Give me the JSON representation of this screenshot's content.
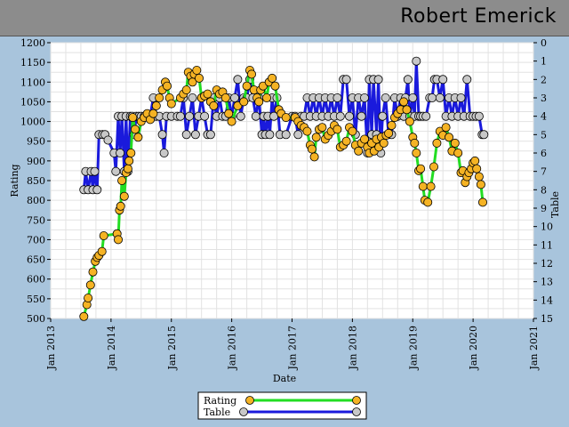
{
  "header": {
    "title": "Robert Emerick"
  },
  "chart_data": {
    "type": "line",
    "xlabel": "Date",
    "ylabel": "Rating",
    "y2label": "Table",
    "ylim": [
      500,
      1200
    ],
    "yticks": [
      500,
      550,
      600,
      650,
      700,
      750,
      800,
      850,
      900,
      950,
      1000,
      1050,
      1100,
      1150,
      1200
    ],
    "y2lim": [
      15,
      0
    ],
    "y2ticks": [
      0,
      1,
      2,
      3,
      4,
      5,
      6,
      7,
      8,
      9,
      10,
      11,
      12,
      13,
      14,
      15
    ],
    "xlim": [
      2013,
      2021
    ],
    "xticks": [
      {
        "value": 2013,
        "label": "Jan 2013"
      },
      {
        "value": 2014,
        "label": "Jan 2014"
      },
      {
        "value": 2015,
        "label": "Jan 2015"
      },
      {
        "value": 2016,
        "label": "Jan 2016"
      },
      {
        "value": 2017,
        "label": "Jan 2017"
      },
      {
        "value": 2018,
        "label": "Jan 2018"
      },
      {
        "value": 2019,
        "label": "Jan 2019"
      },
      {
        "value": 2020,
        "label": "Jan 2020"
      },
      {
        "value": 2021,
        "label": "Jan 2021"
      }
    ],
    "grid": true,
    "legend_position": "bottom-center",
    "series": [
      {
        "name": "Rating",
        "axis": "left",
        "line_color": "#22dd22",
        "marker_color": "#f5b324",
        "points": [
          [
            2013.55,
            505
          ],
          [
            2013.6,
            535
          ],
          [
            2013.62,
            552
          ],
          [
            2013.66,
            585
          ],
          [
            2013.7,
            618
          ],
          [
            2013.74,
            645
          ],
          [
            2013.77,
            655
          ],
          [
            2013.8,
            660
          ],
          [
            2013.85,
            670
          ],
          [
            2013.88,
            710
          ],
          [
            2014.1,
            715
          ],
          [
            2014.12,
            700
          ],
          [
            2014.14,
            775
          ],
          [
            2014.16,
            785
          ],
          [
            2014.18,
            850
          ],
          [
            2014.22,
            810
          ],
          [
            2014.25,
            870
          ],
          [
            2014.28,
            880
          ],
          [
            2014.3,
            900
          ],
          [
            2014.33,
            920
          ],
          [
            2014.36,
            1010
          ],
          [
            2014.4,
            980
          ],
          [
            2014.45,
            960
          ],
          [
            2014.5,
            1000
          ],
          [
            2014.55,
            1010
          ],
          [
            2014.6,
            1020
          ],
          [
            2014.65,
            1005
          ],
          [
            2014.7,
            1020
          ],
          [
            2014.75,
            1040
          ],
          [
            2014.8,
            1060
          ],
          [
            2014.85,
            1080
          ],
          [
            2014.9,
            1100
          ],
          [
            2014.93,
            1090
          ],
          [
            2014.97,
            1060
          ],
          [
            2015.0,
            1045
          ],
          [
            2015.15,
            1060
          ],
          [
            2015.2,
            1070
          ],
          [
            2015.25,
            1080
          ],
          [
            2015.28,
            1125
          ],
          [
            2015.32,
            1115
          ],
          [
            2015.35,
            1100
          ],
          [
            2015.38,
            1120
          ],
          [
            2015.42,
            1130
          ],
          [
            2015.46,
            1110
          ],
          [
            2015.5,
            1060
          ],
          [
            2015.55,
            1065
          ],
          [
            2015.6,
            1070
          ],
          [
            2015.65,
            1050
          ],
          [
            2015.7,
            1040
          ],
          [
            2015.75,
            1080
          ],
          [
            2015.8,
            1070
          ],
          [
            2015.85,
            1075
          ],
          [
            2015.9,
            1060
          ],
          [
            2015.95,
            1020
          ],
          [
            2016.0,
            1000
          ],
          [
            2016.1,
            1040
          ],
          [
            2016.2,
            1050
          ],
          [
            2016.25,
            1090
          ],
          [
            2016.3,
            1130
          ],
          [
            2016.33,
            1120
          ],
          [
            2016.37,
            1080
          ],
          [
            2016.42,
            1060
          ],
          [
            2016.45,
            1050
          ],
          [
            2016.48,
            1080
          ],
          [
            2016.52,
            1090
          ],
          [
            2016.58,
            1060
          ],
          [
            2016.62,
            1100
          ],
          [
            2016.67,
            1110
          ],
          [
            2016.72,
            1090
          ],
          [
            2016.78,
            1030
          ],
          [
            2016.82,
            1020
          ],
          [
            2016.9,
            1010
          ],
          [
            2017.05,
            1010
          ],
          [
            2017.1,
            1000
          ],
          [
            2017.15,
            990
          ],
          [
            2017.2,
            985
          ],
          [
            2017.25,
            975
          ],
          [
            2017.3,
            940
          ],
          [
            2017.33,
            930
          ],
          [
            2017.37,
            910
          ],
          [
            2017.4,
            960
          ],
          [
            2017.45,
            980
          ],
          [
            2017.5,
            985
          ],
          [
            2017.55,
            955
          ],
          [
            2017.6,
            965
          ],
          [
            2017.65,
            975
          ],
          [
            2017.7,
            990
          ],
          [
            2017.75,
            980
          ],
          [
            2017.8,
            935
          ],
          [
            2017.85,
            940
          ],
          [
            2017.9,
            950
          ],
          [
            2017.95,
            985
          ],
          [
            2018.0,
            975
          ],
          [
            2018.05,
            940
          ],
          [
            2018.1,
            925
          ],
          [
            2018.15,
            945
          ],
          [
            2018.2,
            955
          ],
          [
            2018.25,
            935
          ],
          [
            2018.28,
            920
          ],
          [
            2018.32,
            945
          ],
          [
            2018.36,
            925
          ],
          [
            2018.4,
            955
          ],
          [
            2018.44,
            935
          ],
          [
            2018.48,
            960
          ],
          [
            2018.52,
            945
          ],
          [
            2018.56,
            965
          ],
          [
            2018.6,
            970
          ],
          [
            2018.65,
            990
          ],
          [
            2018.7,
            1010
          ],
          [
            2018.75,
            1020
          ],
          [
            2018.8,
            1030
          ],
          [
            2018.85,
            1050
          ],
          [
            2018.9,
            1030
          ],
          [
            2018.95,
            1000
          ],
          [
            2019.0,
            960
          ],
          [
            2019.03,
            945
          ],
          [
            2019.06,
            920
          ],
          [
            2019.1,
            875
          ],
          [
            2019.13,
            880
          ],
          [
            2019.17,
            835
          ],
          [
            2019.2,
            800
          ],
          [
            2019.25,
            795
          ],
          [
            2019.3,
            835
          ],
          [
            2019.35,
            885
          ],
          [
            2019.4,
            945
          ],
          [
            2019.45,
            975
          ],
          [
            2019.5,
            965
          ],
          [
            2019.55,
            985
          ],
          [
            2019.6,
            960
          ],
          [
            2019.65,
            925
          ],
          [
            2019.7,
            945
          ],
          [
            2019.75,
            920
          ],
          [
            2019.8,
            870
          ],
          [
            2019.83,
            875
          ],
          [
            2019.87,
            845
          ],
          [
            2019.9,
            860
          ],
          [
            2019.93,
            870
          ],
          [
            2019.97,
            880
          ],
          [
            2020.0,
            895
          ],
          [
            2020.03,
            900
          ],
          [
            2020.06,
            880
          ],
          [
            2020.1,
            860
          ],
          [
            2020.13,
            840
          ],
          [
            2020.16,
            795
          ]
        ]
      },
      {
        "name": "Table",
        "axis": "right",
        "line_color": "#1a1adc",
        "marker_color": "#c8c8c8",
        "points": [
          [
            2013.55,
            8
          ],
          [
            2013.58,
            7
          ],
          [
            2013.62,
            8
          ],
          [
            2013.67,
            7
          ],
          [
            2013.7,
            8
          ],
          [
            2013.73,
            7
          ],
          [
            2013.77,
            8
          ],
          [
            2013.8,
            5
          ],
          [
            2013.86,
            5
          ],
          [
            2013.9,
            5
          ],
          [
            2013.95,
            5.3
          ],
          [
            2014.05,
            6
          ],
          [
            2014.08,
            7
          ],
          [
            2014.12,
            4
          ],
          [
            2014.15,
            6
          ],
          [
            2014.18,
            4
          ],
          [
            2014.22,
            7
          ],
          [
            2014.25,
            4
          ],
          [
            2014.28,
            7
          ],
          [
            2014.32,
            4
          ],
          [
            2014.35,
            4
          ],
          [
            2014.38,
            5
          ],
          [
            2014.42,
            4
          ],
          [
            2014.46,
            4
          ],
          [
            2014.5,
            4
          ],
          [
            2014.55,
            4
          ],
          [
            2014.6,
            4
          ],
          [
            2014.65,
            4
          ],
          [
            2014.7,
            3
          ],
          [
            2014.75,
            4
          ],
          [
            2014.8,
            4
          ],
          [
            2014.85,
            5
          ],
          [
            2014.88,
            6
          ],
          [
            2014.92,
            4
          ],
          [
            2015.0,
            4
          ],
          [
            2015.1,
            4
          ],
          [
            2015.15,
            4
          ],
          [
            2015.2,
            3
          ],
          [
            2015.25,
            5
          ],
          [
            2015.3,
            4
          ],
          [
            2015.35,
            3
          ],
          [
            2015.4,
            5
          ],
          [
            2015.45,
            4
          ],
          [
            2015.5,
            3
          ],
          [
            2015.55,
            4
          ],
          [
            2015.6,
            5
          ],
          [
            2015.65,
            5
          ],
          [
            2015.7,
            3
          ],
          [
            2015.75,
            4
          ],
          [
            2015.8,
            3
          ],
          [
            2015.85,
            4
          ],
          [
            2015.9,
            4
          ],
          [
            2015.95,
            3
          ],
          [
            2016.0,
            4
          ],
          [
            2016.05,
            3
          ],
          [
            2016.1,
            2
          ],
          [
            2016.15,
            4
          ],
          [
            2016.2,
            3
          ],
          [
            2016.25,
            3
          ],
          [
            2016.3,
            2
          ],
          [
            2016.35,
            3
          ],
          [
            2016.4,
            4
          ],
          [
            2016.45,
            3
          ],
          [
            2016.5,
            5
          ],
          [
            2016.53,
            4
          ],
          [
            2016.56,
            5
          ],
          [
            2016.6,
            4
          ],
          [
            2016.63,
            5
          ],
          [
            2016.67,
            3
          ],
          [
            2016.7,
            4
          ],
          [
            2016.75,
            3
          ],
          [
            2016.8,
            5
          ],
          [
            2016.9,
            5
          ],
          [
            2017.0,
            4
          ],
          [
            2017.05,
            4
          ],
          [
            2017.1,
            5
          ],
          [
            2017.15,
            4
          ],
          [
            2017.2,
            4
          ],
          [
            2017.25,
            3
          ],
          [
            2017.3,
            4
          ],
          [
            2017.35,
            3
          ],
          [
            2017.4,
            4
          ],
          [
            2017.45,
            3
          ],
          [
            2017.5,
            4
          ],
          [
            2017.55,
            3
          ],
          [
            2017.6,
            4
          ],
          [
            2017.65,
            3
          ],
          [
            2017.7,
            4
          ],
          [
            2017.75,
            3
          ],
          [
            2017.8,
            4
          ],
          [
            2017.85,
            2
          ],
          [
            2017.9,
            2
          ],
          [
            2017.95,
            4
          ],
          [
            2018.0,
            3
          ],
          [
            2018.05,
            5
          ],
          [
            2018.1,
            3
          ],
          [
            2018.15,
            4
          ],
          [
            2018.2,
            3
          ],
          [
            2018.25,
            6
          ],
          [
            2018.28,
            2
          ],
          [
            2018.32,
            5
          ],
          [
            2018.35,
            2
          ],
          [
            2018.4,
            5
          ],
          [
            2018.43,
            2
          ],
          [
            2018.47,
            6
          ],
          [
            2018.5,
            4
          ],
          [
            2018.55,
            3
          ],
          [
            2018.6,
            5
          ],
          [
            2018.65,
            5
          ],
          [
            2018.7,
            3
          ],
          [
            2018.75,
            4
          ],
          [
            2018.8,
            3
          ],
          [
            2018.85,
            4
          ],
          [
            2018.88,
            3
          ],
          [
            2018.92,
            2
          ],
          [
            2018.95,
            4
          ],
          [
            2019.0,
            3
          ],
          [
            2019.03,
            4
          ],
          [
            2019.06,
            1
          ],
          [
            2019.1,
            4
          ],
          [
            2019.13,
            4
          ],
          [
            2019.17,
            4
          ],
          [
            2019.22,
            4
          ],
          [
            2019.28,
            3
          ],
          [
            2019.32,
            3
          ],
          [
            2019.36,
            2
          ],
          [
            2019.4,
            2
          ],
          [
            2019.45,
            3
          ],
          [
            2019.5,
            2
          ],
          [
            2019.55,
            4
          ],
          [
            2019.6,
            3
          ],
          [
            2019.65,
            4
          ],
          [
            2019.7,
            3
          ],
          [
            2019.75,
            4
          ],
          [
            2019.8,
            3
          ],
          [
            2019.85,
            4
          ],
          [
            2019.9,
            2
          ],
          [
            2019.95,
            4
          ],
          [
            2020.0,
            4
          ],
          [
            2020.05,
            4
          ],
          [
            2020.1,
            4
          ],
          [
            2020.15,
            5
          ],
          [
            2020.18,
            5
          ]
        ]
      }
    ]
  }
}
